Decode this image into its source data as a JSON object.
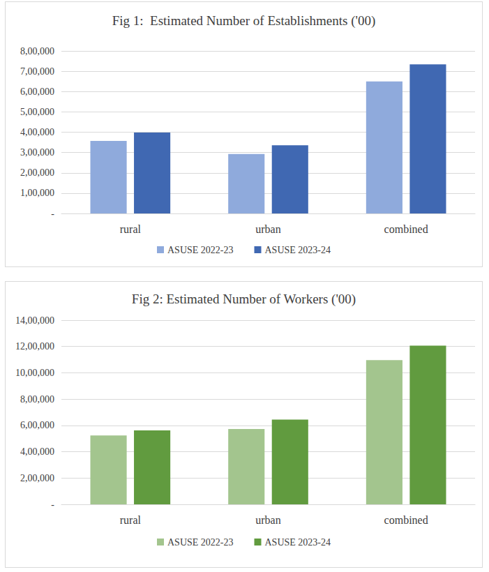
{
  "chart_data": [
    {
      "type": "bar",
      "title": "Fig 1:  Estimated Number of Establishments ('00)",
      "categories": [
        "rural",
        "urban",
        "combined"
      ],
      "series": [
        {
          "name": "ASUSE 2022-23",
          "color": "#8faadc",
          "values": [
            357000,
            293000,
            650000
          ]
        },
        {
          "name": "ASUSE 2023-24",
          "color": "#4068b2",
          "values": [
            398000,
            336000,
            734000
          ]
        }
      ],
      "ylim": [
        0,
        800000
      ],
      "yticks": [
        {
          "value": 0,
          "label": "-"
        },
        {
          "value": 100000,
          "label": "1,00,000"
        },
        {
          "value": 200000,
          "label": "2,00,000"
        },
        {
          "value": 300000,
          "label": "3,00,000"
        },
        {
          "value": 400000,
          "label": "4,00,000"
        },
        {
          "value": 500000,
          "label": "5,00,000"
        },
        {
          "value": 600000,
          "label": "6,00,000"
        },
        {
          "value": 700000,
          "label": "7,00,000"
        },
        {
          "value": 800000,
          "label": "8,00,000"
        }
      ],
      "grid": true,
      "legend": "bottom"
    },
    {
      "type": "bar",
      "title": "Fig 2: Estimated Number of Workers ('00)",
      "categories": [
        "rural",
        "urban",
        "combined"
      ],
      "series": [
        {
          "name": "ASUSE 2022-23",
          "color": "#a3c58e",
          "values": [
            524000,
            573000,
            1097000
          ]
        },
        {
          "name": "ASUSE 2023-24",
          "color": "#619b3f",
          "values": [
            562000,
            644000,
            1206000
          ]
        }
      ],
      "ylim": [
        0,
        1400000
      ],
      "yticks": [
        {
          "value": 0,
          "label": "-"
        },
        {
          "value": 200000,
          "label": "2,00,000"
        },
        {
          "value": 400000,
          "label": "4,00,000"
        },
        {
          "value": 600000,
          "label": "6,00,000"
        },
        {
          "value": 800000,
          "label": "8,00,000"
        },
        {
          "value": 1000000,
          "label": "10,00,000"
        },
        {
          "value": 1200000,
          "label": "12,00,000"
        },
        {
          "value": 1400000,
          "label": "14,00,000"
        }
      ],
      "grid": true,
      "legend": "bottom"
    }
  ]
}
